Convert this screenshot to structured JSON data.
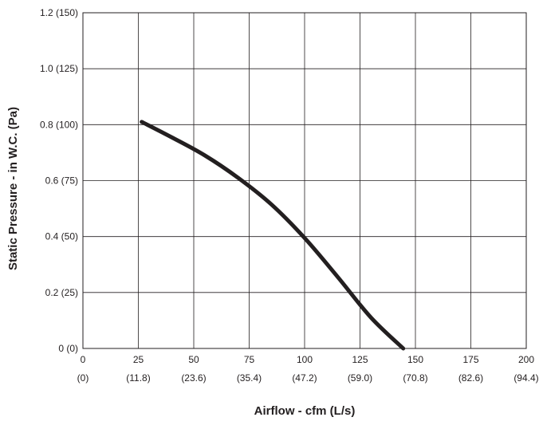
{
  "chart_data": {
    "type": "line",
    "xlabel": "Airflow - cfm (L/s)",
    "ylabel": "Static Pressure - in W.C. (Pa)",
    "xlim": [
      0,
      200
    ],
    "ylim": [
      0,
      1.2
    ],
    "x_ticks": [
      {
        "value": 0,
        "label": "0",
        "sublabel": "(0)"
      },
      {
        "value": 25,
        "label": "25",
        "sublabel": "(11.8)"
      },
      {
        "value": 50,
        "label": "50",
        "sublabel": "(23.6)"
      },
      {
        "value": 75,
        "label": "75",
        "sublabel": "(35.4)"
      },
      {
        "value": 100,
        "label": "100",
        "sublabel": "(47.2)"
      },
      {
        "value": 125,
        "label": "125",
        "sublabel": "(59.0)"
      },
      {
        "value": 150,
        "label": "150",
        "sublabel": "(70.8)"
      },
      {
        "value": 175,
        "label": "175",
        "sublabel": "(82.6)"
      },
      {
        "value": 200,
        "label": "200",
        "sublabel": "(94.4)"
      }
    ],
    "y_ticks": [
      {
        "value": 0,
        "label": "0 (0)"
      },
      {
        "value": 0.2,
        "label": "0.2 (25)"
      },
      {
        "value": 0.4,
        "label": "0.4 (50)"
      },
      {
        "value": 0.6,
        "label": "0.6 (75)"
      },
      {
        "value": 0.8,
        "label": "0.8 (100)"
      },
      {
        "value": 1.0,
        "label": "1.0 (125)"
      },
      {
        "value": 1.2,
        "label": "1.2 (150)"
      }
    ],
    "grid": true,
    "series": [
      {
        "color": "#231f20",
        "points": [
          {
            "x": 26.5,
            "y": 0.81
          },
          {
            "x": 40,
            "y": 0.755
          },
          {
            "x": 55,
            "y": 0.69
          },
          {
            "x": 70,
            "y": 0.61
          },
          {
            "x": 85,
            "y": 0.515
          },
          {
            "x": 100,
            "y": 0.395
          },
          {
            "x": 115,
            "y": 0.255
          },
          {
            "x": 130,
            "y": 0.11
          },
          {
            "x": 144.5,
            "y": 0.0
          }
        ]
      }
    ]
  }
}
